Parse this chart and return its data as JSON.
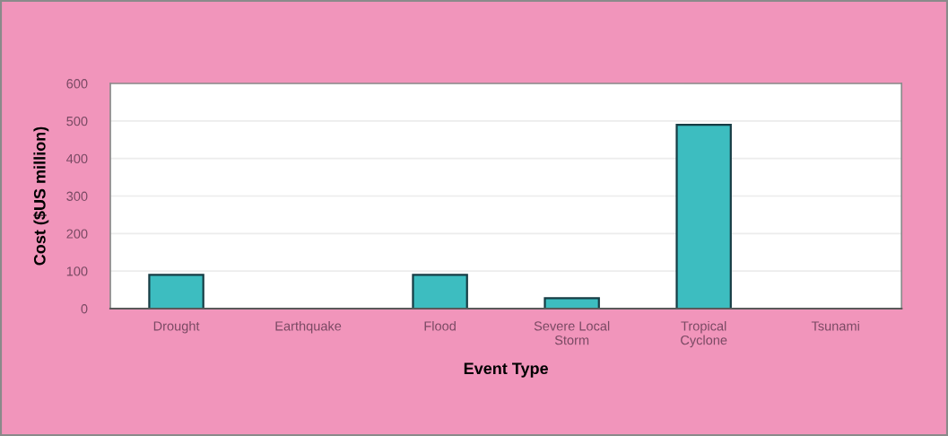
{
  "chart_data": {
    "type": "bar",
    "xlabel": "Event Type",
    "ylabel": "Cost ($US million)",
    "categories": [
      "Drought",
      "Earthquake",
      "Flood",
      "Severe Local\nStorm",
      "Tropical\nCyclone",
      "Tsunami"
    ],
    "values": [
      90,
      0,
      90,
      28,
      490,
      0
    ],
    "color": "#3dbdc0",
    "ylim": [
      0,
      600
    ],
    "yticks": [
      0,
      100,
      200,
      300,
      400,
      500,
      600
    ],
    "grid": "y"
  }
}
